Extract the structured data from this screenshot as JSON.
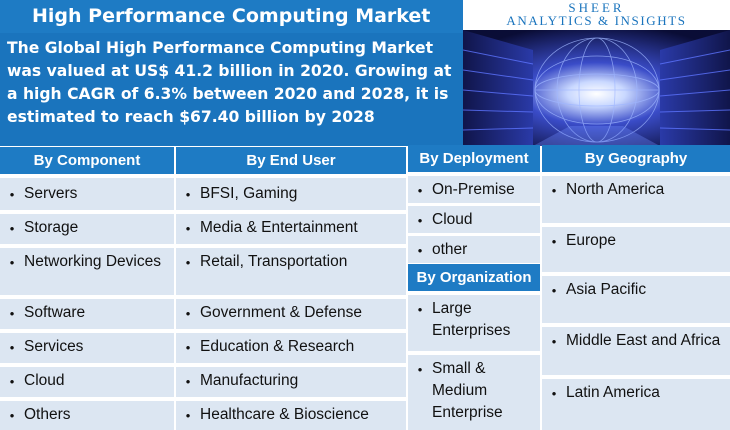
{
  "header": {
    "title": "High Performance Computing Market",
    "intro": "The Global High Performance Computing Market was valued at US$ 41.2 billion in 2020. Growing at a high CAGR of 6.3% between 2020 and 2028, it is estimated to reach $67.40 billion by 2028"
  },
  "brand": {
    "line1": "SHEER",
    "line2": "ANALYTICS & INSIGHTS"
  },
  "colors": {
    "header_blue": "#1e7bc4",
    "row_shade": "#dce6f2"
  },
  "columns": {
    "component": {
      "heading": "By Component",
      "items": [
        "Servers",
        "Storage",
        "Networking Devices",
        "Software",
        "Services",
        "Cloud",
        "Others"
      ]
    },
    "end_user": {
      "heading": "By End User",
      "items": [
        "BFSI, Gaming",
        "Media & Entertainment",
        "Retail, Transportation",
        "Government & Defense",
        "Education & Research",
        "Manufacturing",
        "Healthcare & Bioscience"
      ]
    },
    "deployment": {
      "heading": "By Deployment",
      "items": [
        "On-Premise",
        "Cloud",
        "other"
      ]
    },
    "organization": {
      "heading": "By Organization",
      "items": [
        "Large Enterprises",
        "Small & Medium Enterprise"
      ]
    },
    "geography": {
      "heading": "By Geography",
      "items": [
        "North America",
        "Europe",
        "Asia Pacific",
        "Middle East and Africa",
        "Latin America"
      ]
    }
  }
}
